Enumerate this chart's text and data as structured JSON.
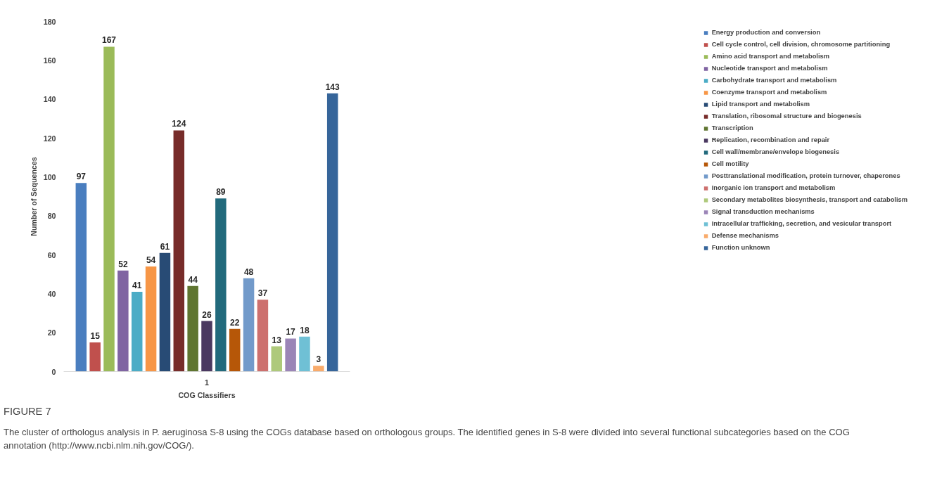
{
  "chart_data": {
    "type": "bar",
    "xlabel": "COG Classifiers",
    "ylabel": "Number of Sequences",
    "categories": [
      "1"
    ],
    "series": [
      {
        "name": "Energy production and conversion",
        "color": "#4a7ebf",
        "values": [
          97
        ]
      },
      {
        "name": "Cell cycle control, cell division, chromosome partitioning",
        "color": "#c0504d",
        "values": [
          15
        ]
      },
      {
        "name": "Amino acid transport and metabolism",
        "color": "#9bbb59",
        "values": [
          167
        ]
      },
      {
        "name": "Nucleotide transport and metabolism",
        "color": "#8064a2",
        "values": [
          52
        ]
      },
      {
        "name": "Carbohydrate transport and metabolism",
        "color": "#4bacc6",
        "values": [
          41
        ]
      },
      {
        "name": "Coenzyme transport and metabolism",
        "color": "#f79646",
        "values": [
          54
        ]
      },
      {
        "name": "Lipid transport and metabolism",
        "color": "#284b75",
        "values": [
          61
        ]
      },
      {
        "name": "Translation, ribosomal structure and biogenesis",
        "color": "#772c2a",
        "values": [
          124
        ]
      },
      {
        "name": "Transcription",
        "color": "#5f7530",
        "values": [
          44
        ]
      },
      {
        "name": "Replication, recombination and repair",
        "color": "#4a3860",
        "values": [
          26
        ]
      },
      {
        "name": "Cell wall/membrane/envelope biogenesis",
        "color": "#226a7c",
        "values": [
          89
        ]
      },
      {
        "name": "Cell motility",
        "color": "#b65708",
        "values": [
          22
        ]
      },
      {
        "name": "Posttranslational modification, protein turnover, chaperones",
        "color": "#729aca",
        "values": [
          48
        ]
      },
      {
        "name": "Inorganic ion transport and metabolism",
        "color": "#cd706e",
        "values": [
          37
        ]
      },
      {
        "name": "Secondary metabolites biosynthesis, transport and catabolism",
        "color": "#aec97b",
        "values": [
          13
        ]
      },
      {
        "name": "Signal transduction mechanisms",
        "color": "#9b85b7",
        "values": [
          17
        ]
      },
      {
        "name": "Intracellular trafficking, secretion, and vesicular transport",
        "color": "#6fc0d5",
        "values": [
          18
        ]
      },
      {
        "name": "Defense mechanisms",
        "color": "#f9ab6b",
        "values": [
          3
        ]
      },
      {
        "name": "Function unknown",
        "color": "#36659a",
        "values": [
          143
        ]
      }
    ],
    "ylim": [
      0,
      180
    ],
    "yticks": [
      0,
      20,
      40,
      60,
      80,
      100,
      120,
      140,
      160,
      180
    ],
    "grid": false,
    "legend": "right",
    "data_labels": true,
    "annotations": [
      "FIGURE 7",
      "The cluster of orthologus analysis in P. aeruginosa S-8 using the COGs database based on orthologous groups. The identified genes in S-8 were divided into several functional subcategories based on the COG annotation (http://www.ncbi.nlm.nih.gov/COG/)."
    ]
  }
}
